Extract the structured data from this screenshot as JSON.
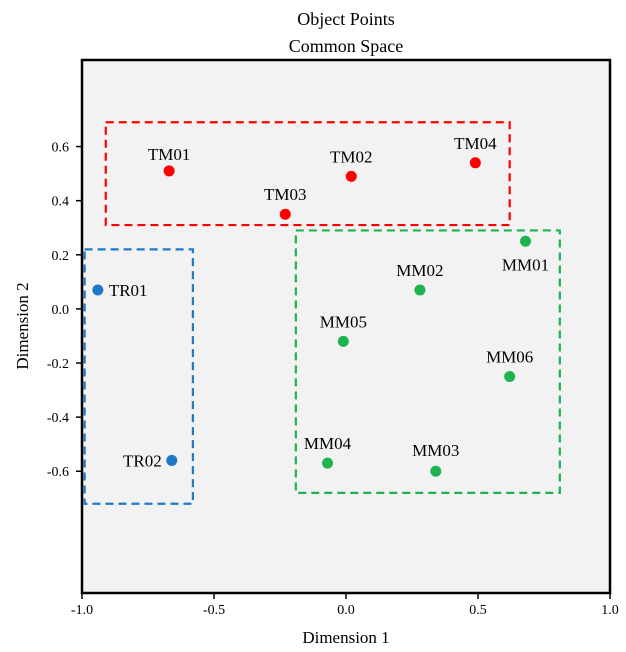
{
  "chart_data": {
    "type": "scatter",
    "title": "Object Points",
    "subtitle": "Common Space",
    "xlabel": "Dimension 1",
    "ylabel": "Dimension 2",
    "xlim": [
      -1.0,
      1.0
    ],
    "ylim": [
      -1.05,
      0.92
    ],
    "x_ticks": [
      "-1.0",
      "-0.5",
      "0.0",
      "0.5",
      "1.0"
    ],
    "y_ticks": [
      "0.6",
      "0.4",
      "0.2",
      "0.0",
      "-0.2",
      "-0.4",
      "-0.6"
    ],
    "plot_background": "#f2f2f2",
    "grid": false,
    "series": [
      {
        "color": "#ff0000",
        "points": [
          {
            "label": "TM01",
            "x": -0.67,
            "y": 0.51
          },
          {
            "label": "TM02",
            "x": 0.02,
            "y": 0.49
          },
          {
            "label": "TM03",
            "x": -0.23,
            "y": 0.35
          },
          {
            "label": "TM04",
            "x": 0.49,
            "y": 0.54
          }
        ]
      },
      {
        "color": "#1f78c8",
        "points": [
          {
            "label": "TR01",
            "x": -0.94,
            "y": 0.07
          },
          {
            "label": "TR02",
            "x": -0.66,
            "y": -0.56
          }
        ]
      },
      {
        "color": "#1db34f",
        "points": [
          {
            "label": "MM01",
            "x": 0.68,
            "y": 0.25
          },
          {
            "label": "MM02",
            "x": 0.28,
            "y": 0.07
          },
          {
            "label": "MM03",
            "x": 0.34,
            "y": -0.6
          },
          {
            "label": "MM04",
            "x": -0.07,
            "y": -0.57
          },
          {
            "label": "MM05",
            "x": -0.01,
            "y": -0.12
          },
          {
            "label": "MM06",
            "x": 0.62,
            "y": -0.25
          }
        ]
      }
    ],
    "groups": [
      {
        "color": "#ff0000",
        "x_range": [
          -0.91,
          0.62
        ],
        "y_range": [
          0.31,
          0.69
        ]
      },
      {
        "color": "#1f78c8",
        "x_range": [
          -0.99,
          -0.58
        ],
        "y_range": [
          -0.72,
          0.22
        ]
      },
      {
        "color": "#1db34f",
        "x_range": [
          -0.19,
          0.81
        ],
        "y_range": [
          -0.68,
          0.29
        ]
      }
    ]
  }
}
